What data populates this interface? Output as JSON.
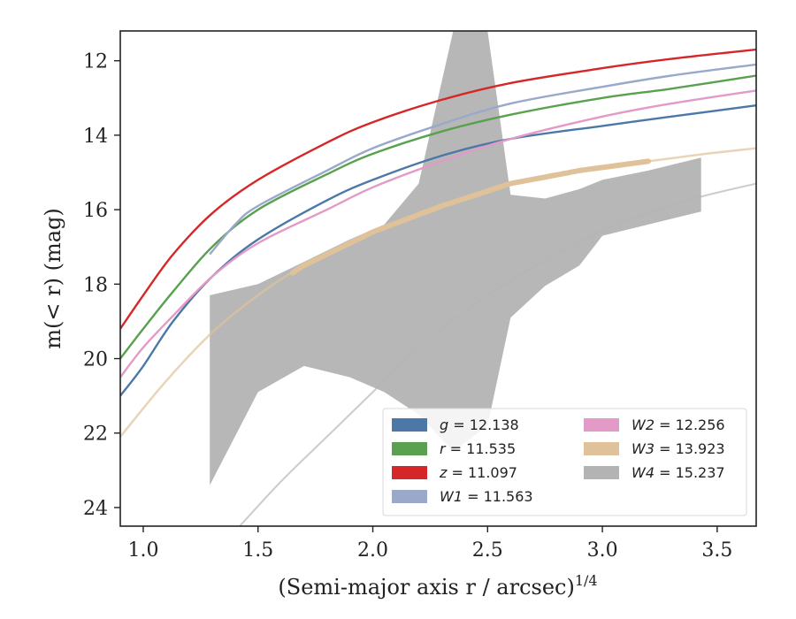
{
  "chart_data": {
    "type": "line",
    "title": "",
    "xlabel": "(Semi-major axis r / arcsec)",
    "xlabel_superscript": "1/4",
    "ylabel": "m(< r) (mag)",
    "xlim": [
      0.9,
      3.67
    ],
    "ylim": [
      24.5,
      11.2
    ],
    "y_inverted": true,
    "grid": false,
    "legend_position": "lower-right",
    "legend_columns": 2,
    "xticks": [
      1.0,
      1.5,
      2.0,
      2.5,
      3.0,
      3.5
    ],
    "xtick_labels": [
      "1.0",
      "1.5",
      "2.0",
      "2.5",
      "3.0",
      "3.5"
    ],
    "yticks": [
      12,
      14,
      16,
      18,
      20,
      22,
      24
    ],
    "ytick_labels": [
      "12",
      "14",
      "16",
      "18",
      "20",
      "22",
      "24"
    ],
    "series": [
      {
        "name": "g = 12.138",
        "color": "#4c78a8",
        "style": "line",
        "x": [
          0.9,
          1.0,
          1.13,
          1.3,
          1.5,
          1.8,
          2.0,
          2.3,
          2.6,
          3.0,
          3.3,
          3.67
        ],
        "y": [
          21.0,
          20.2,
          19.0,
          17.8,
          16.8,
          15.75,
          15.2,
          14.55,
          14.1,
          13.75,
          13.5,
          13.2
        ]
      },
      {
        "name": "r = 11.535",
        "color": "#59a14f",
        "style": "line",
        "x": [
          0.9,
          1.0,
          1.13,
          1.3,
          1.5,
          1.8,
          2.0,
          2.3,
          2.6,
          3.0,
          3.3,
          3.67
        ],
        "y": [
          20.0,
          19.2,
          18.2,
          17.0,
          16.0,
          15.05,
          14.5,
          13.9,
          13.45,
          13.0,
          12.75,
          12.4
        ]
      },
      {
        "name": "z = 11.097",
        "color": "#d62728",
        "style": "line",
        "x": [
          0.9,
          1.0,
          1.13,
          1.3,
          1.5,
          1.8,
          2.0,
          2.3,
          2.6,
          3.0,
          3.3,
          3.67
        ],
        "y": [
          19.2,
          18.3,
          17.2,
          16.1,
          15.2,
          14.2,
          13.65,
          13.05,
          12.6,
          12.2,
          11.95,
          11.7
        ]
      },
      {
        "name": "W1 = 11.563",
        "color": "#9aa9c9",
        "style": "line",
        "x": [
          1.29,
          1.4,
          1.5,
          1.8,
          2.0,
          2.3,
          2.6,
          3.0,
          3.3,
          3.67
        ],
        "y": [
          17.2,
          16.4,
          15.9,
          14.95,
          14.35,
          13.7,
          13.15,
          12.7,
          12.4,
          12.1
        ]
      },
      {
        "name": "W2 = 12.256",
        "color": "#e39ac6",
        "style": "line",
        "x": [
          0.9,
          1.0,
          1.13,
          1.3,
          1.5,
          1.8,
          2.0,
          2.3,
          2.6,
          3.0,
          3.3,
          3.67
        ],
        "y": [
          20.5,
          19.7,
          18.85,
          17.8,
          16.9,
          16.0,
          15.4,
          14.7,
          14.1,
          13.5,
          13.15,
          12.8
        ]
      },
      {
        "name": "W3 = 13.923",
        "color": "#dfc29a",
        "style": "band",
        "x": [
          0.9,
          1.1,
          1.3,
          1.5,
          1.7,
          2.0,
          2.3,
          2.6,
          2.9,
          3.2,
          3.45,
          3.67
        ],
        "y": [
          22.1,
          20.6,
          19.3,
          18.3,
          17.5,
          16.6,
          15.9,
          15.3,
          14.95,
          14.7,
          14.5,
          14.35
        ],
        "thick_range": [
          1.65,
          3.2
        ]
      },
      {
        "name": "W4 = 15.237",
        "color": "#b3b3b3",
        "style": "band",
        "x": [
          1.29,
          1.5,
          1.7,
          1.9,
          2.05,
          2.2,
          2.35,
          2.5,
          2.6,
          2.75,
          2.9,
          3.0,
          3.2,
          3.43
        ],
        "y_upper": [
          18.3,
          18.0,
          17.4,
          16.8,
          16.4,
          15.3,
          11.2,
          11.2,
          15.6,
          15.7,
          15.45,
          15.2,
          14.95,
          14.6
        ],
        "y_lower": [
          23.4,
          20.9,
          20.2,
          20.5,
          20.9,
          21.5,
          22.5,
          21.8,
          18.9,
          18.05,
          17.5,
          16.7,
          16.4,
          16.05
        ]
      }
    ],
    "extra_curve": {
      "color": "#cccccc",
      "x": [
        1.42,
        1.6,
        1.8,
        2.0,
        2.2,
        2.5,
        2.8,
        3.1,
        3.4,
        3.67
      ],
      "y": [
        24.5,
        23.3,
        22.1,
        20.9,
        19.7,
        18.3,
        17.2,
        16.3,
        15.7,
        15.3
      ]
    },
    "legend": {
      "left_column": [
        "g = 12.138",
        "r = 11.535",
        "z = 11.097",
        "W1 = 11.563"
      ],
      "right_column": [
        "W2 = 12.256",
        "W3 = 13.923",
        "W4 = 15.237"
      ]
    }
  }
}
